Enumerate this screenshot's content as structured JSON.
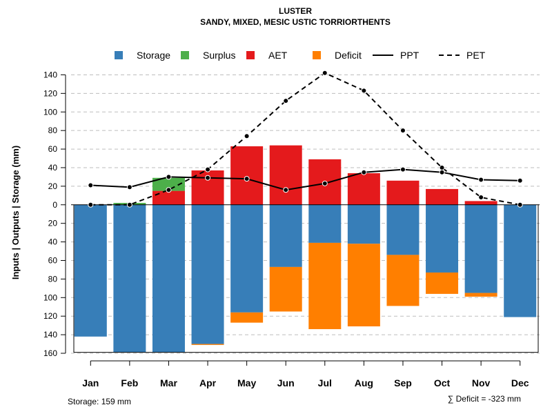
{
  "chart_data": {
    "type": "bar",
    "title": "LUSTER",
    "subtitle": "SANDY, MIXED, MESIC USTIC TORRIORTHENTS",
    "ylabel": "Inputs | Outputs | Storage    (mm)",
    "ylim": [
      -160,
      150
    ],
    "y_ticks": [
      140,
      120,
      100,
      80,
      60,
      40,
      20,
      0,
      -20,
      -40,
      -60,
      -80,
      -100,
      -120,
      -140,
      -160
    ],
    "y_tick_labels": [
      "140",
      "120",
      "100",
      "80",
      "60",
      "40",
      "20",
      "0",
      "20",
      "40",
      "60",
      "80",
      "100",
      "120",
      "140",
      "160"
    ],
    "categories": [
      "Jan",
      "Feb",
      "Mar",
      "Apr",
      "May",
      "Jun",
      "Jul",
      "Aug",
      "Sep",
      "Oct",
      "Nov",
      "Dec"
    ],
    "series": [
      {
        "name": "Storage",
        "color": "#377eb8",
        "values": [
          -142,
          -159,
          -159,
          -150,
          -116,
          -67,
          -41,
          -42,
          -54,
          -73,
          -95,
          -121
        ]
      },
      {
        "name": "Surplus",
        "color": "#4daf4a",
        "values": [
          0,
          2,
          14,
          0,
          0,
          0,
          0,
          0,
          0,
          0,
          0,
          0
        ]
      },
      {
        "name": "AET",
        "color": "#e41a1c",
        "values": [
          0,
          0,
          15,
          37,
          63,
          64,
          49,
          34,
          26,
          17,
          4,
          0
        ]
      },
      {
        "name": "Deficit",
        "color": "#ff7f00",
        "values": [
          0,
          0,
          0,
          -1,
          -11,
          -48,
          -93,
          -89,
          -55,
          -23,
          -4,
          0
        ]
      },
      {
        "name": "PPT",
        "color": "#000000",
        "line": "solid",
        "values": [
          21,
          19,
          30,
          29,
          28,
          16,
          23,
          35,
          38,
          35,
          27,
          26
        ]
      },
      {
        "name": "PET",
        "color": "#000000",
        "line": "dashed",
        "values": [
          0,
          0,
          16,
          38,
          74,
          112,
          142,
          123,
          80,
          40,
          8,
          0
        ]
      }
    ],
    "legend": [
      "Storage",
      "Surplus",
      "AET",
      "Deficit",
      "PPT",
      "PET"
    ],
    "legend_position": "top",
    "grid": true
  },
  "footer": {
    "storage": "Storage: 159 mm",
    "deficit": "∑ Deficit = -323 mm"
  }
}
